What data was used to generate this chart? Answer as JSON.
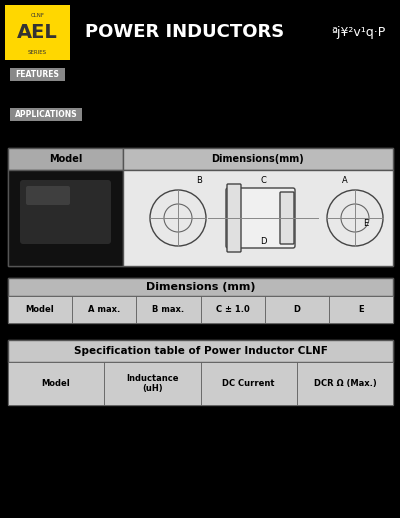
{
  "background_color": "#000000",
  "title_text": "POWER INDUCTORS",
  "title_right_text": "ªj¥²v¹q·P",
  "features_label": "FEATURES",
  "applications_label": "APPLICATIONS",
  "dim_table_title": "Dimensions(mm)",
  "dim_columns": [
    "B",
    "C",
    "A"
  ],
  "dim_section_header": "Dimensions (mm)",
  "dim_row_headers": [
    "Model",
    "A max.",
    "B max.",
    "C ± 1.0",
    "D",
    "E"
  ],
  "spec_table_title": "Specification table of Power Inductor CLNF",
  "spec_col_headers": [
    "Model",
    "Inductance\n(uH)",
    "DC Current",
    "DCR Ω (Max.)"
  ],
  "logo_bg": "#FFD700",
  "table_bg": "#d3d3d3",
  "table_header_bg": "#c0c0c0",
  "white": "#ffffff",
  "light_gray": "#e8e8e8",
  "medium_gray": "#b0b0b0",
  "dark_gray": "#808080",
  "text_color": "#ffffff",
  "table_text_color": "#000000"
}
